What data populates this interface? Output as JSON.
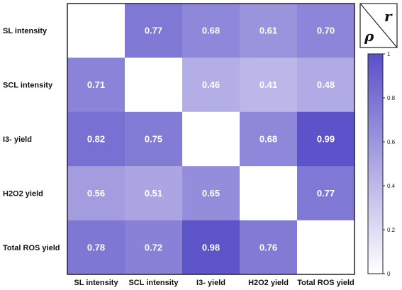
{
  "chart_data": {
    "type": "heatmap",
    "row_labels": [
      "SL intensity",
      "SCL intensity",
      "I3- yield",
      "H2O2 yield",
      "Total ROS yield"
    ],
    "col_labels": [
      "SL intensity",
      "SCL intensity",
      "I3- yield",
      "H2O2 yield",
      "Total ROS yield"
    ],
    "values": [
      [
        null,
        0.77,
        0.68,
        0.61,
        0.7
      ],
      [
        0.71,
        null,
        0.46,
        0.41,
        0.48
      ],
      [
        0.82,
        0.75,
        null,
        0.68,
        0.99
      ],
      [
        0.56,
        0.51,
        0.65,
        null,
        0.77
      ],
      [
        0.78,
        0.72,
        0.98,
        0.76,
        null
      ]
    ],
    "value_labels": [
      [
        "",
        "0.77",
        "0.68",
        "0.61",
        "0.70"
      ],
      [
        "0.71",
        "",
        "0.46",
        "0.41",
        "0.48"
      ],
      [
        "0.82",
        "0.75",
        "",
        "0.68",
        "0.99"
      ],
      [
        "0.56",
        "0.51",
        "0.65",
        "",
        "0.77"
      ],
      [
        "0.78",
        "0.72",
        "0.98",
        "0.76",
        ""
      ]
    ],
    "colorbar": {
      "range": [
        0,
        1
      ],
      "ticks": [
        0,
        0.2,
        0.4,
        0.6,
        0.8,
        1
      ],
      "tick_labels": [
        "0",
        "0.2",
        "0.4",
        "0.6",
        "0.8",
        "1"
      ],
      "low_color": "#ffffff",
      "high_color": "#5a50c8"
    },
    "corner_legend": {
      "upper": "r",
      "lower": "ρ"
    }
  }
}
